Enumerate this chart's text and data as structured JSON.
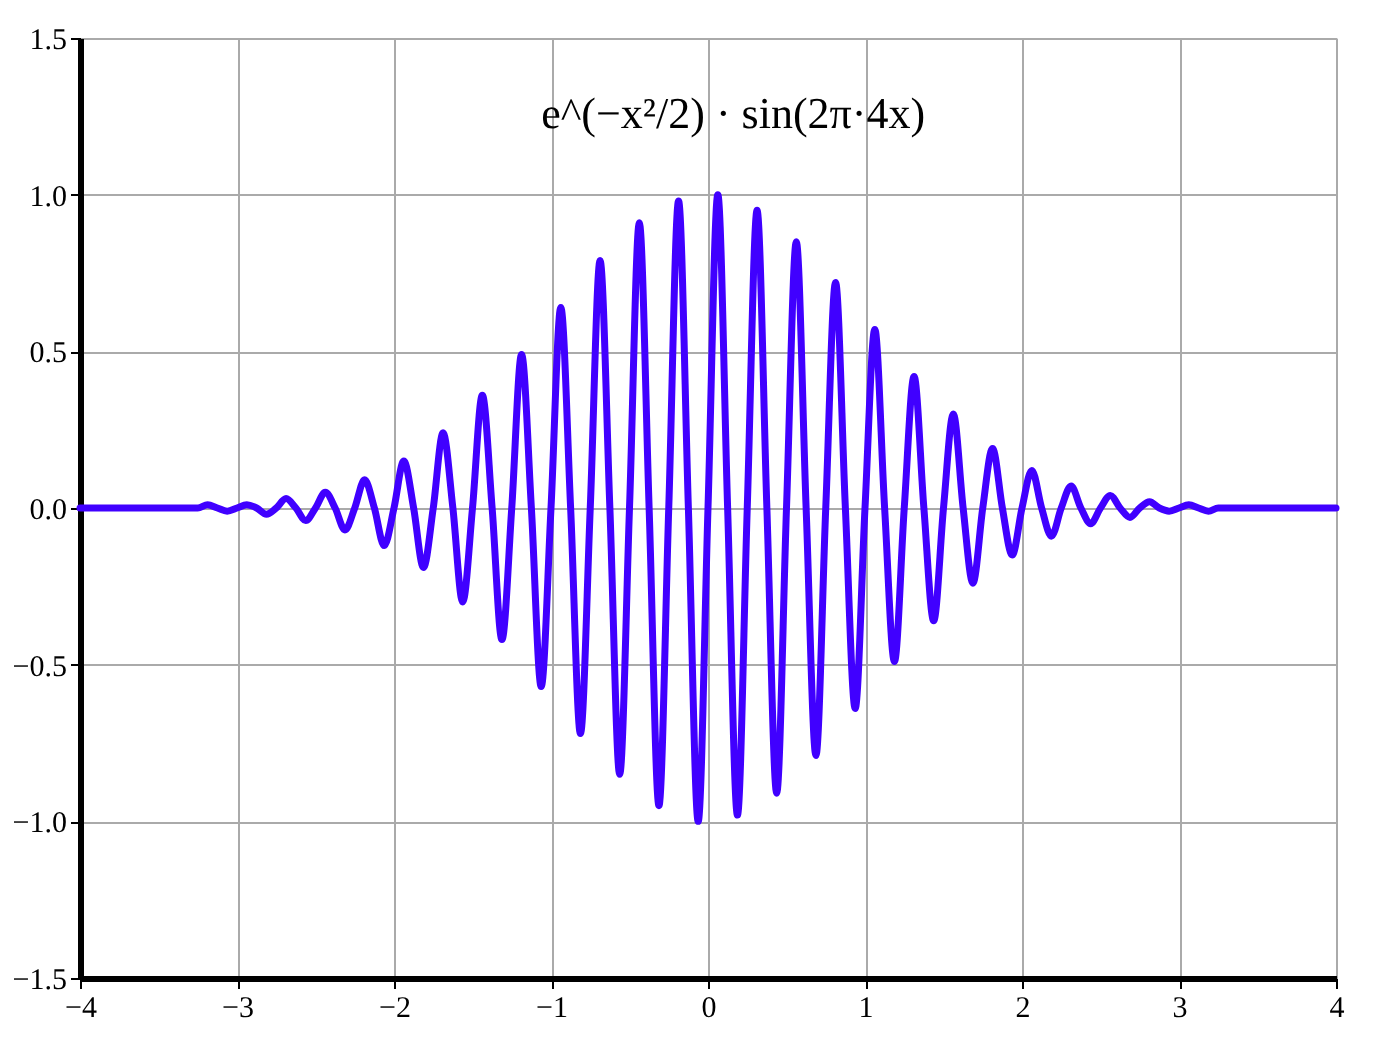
{
  "chart_data": {
    "type": "line",
    "title": "e^(−x²/2) · sin(2π·4x)",
    "x": [
      -4,
      -3.25,
      -3.1875,
      -3.125,
      -3.0625,
      -3,
      -2.9375,
      -2.875,
      -2.8125,
      -2.75,
      -2.6875,
      -2.625,
      -2.5625,
      -2.5,
      -2.4375,
      -2.375,
      -2.3125,
      -2.25,
      -2.1875,
      -2.125,
      -2.0625,
      -2,
      -1.9375,
      -1.875,
      -1.8125,
      -1.75,
      -1.6875,
      -1.625,
      -1.5625,
      -1.5,
      -1.4375,
      -1.375,
      -1.3125,
      -1.25,
      -1.1875,
      -1.125,
      -1.0625,
      -1,
      -0.9375,
      -0.875,
      -0.8125,
      -0.75,
      -0.6875,
      -0.625,
      -0.5625,
      -0.5,
      -0.4375,
      -0.375,
      -0.3125,
      -0.25,
      -0.1875,
      -0.125,
      -0.0625,
      0,
      0.0625,
      0.125,
      0.1875,
      0.25,
      0.3125,
      0.375,
      0.4375,
      0.5,
      0.5625,
      0.625,
      0.6875,
      0.75,
      0.8125,
      0.875,
      0.9375,
      1,
      1.0625,
      1.125,
      1.1875,
      1.25,
      1.3125,
      1.375,
      1.4375,
      1.5,
      1.5625,
      1.625,
      1.6875,
      1.75,
      1.8125,
      1.875,
      1.9375,
      2,
      2.0625,
      2.125,
      2.1875,
      2.25,
      2.3125,
      2.375,
      2.4375,
      2.5,
      2.5625,
      2.625,
      2.6875,
      2.75,
      2.8125,
      2.875,
      2.9375,
      3,
      3.0625,
      3.125,
      3.1875,
      3.25,
      4
    ],
    "series": [
      {
        "color": "#4000ff",
        "values": [
          0,
          0,
          0.01,
          0,
          -0.01,
          0,
          0.01,
          0,
          -0.02,
          0,
          0.03,
          0,
          -0.04,
          0,
          0.05,
          0,
          -0.07,
          0,
          0.09,
          0,
          -0.12,
          0,
          0.15,
          0,
          -0.19,
          0,
          0.24,
          0,
          -0.3,
          0,
          0.36,
          0,
          -0.42,
          0,
          0.49,
          0,
          -0.57,
          0,
          0.64,
          0,
          -0.72,
          0,
          0.79,
          0,
          -0.85,
          0,
          0.91,
          0,
          -0.95,
          0,
          0.98,
          0,
          -1.0,
          0,
          1.0,
          0,
          -0.98,
          0,
          0.95,
          0,
          -0.91,
          0,
          0.85,
          0,
          -0.79,
          0,
          0.72,
          0,
          -0.64,
          0,
          0.57,
          0,
          -0.49,
          0,
          0.42,
          0,
          -0.36,
          0,
          0.3,
          0,
          -0.24,
          0,
          0.19,
          0,
          -0.15,
          0,
          0.12,
          0,
          -0.09,
          0,
          0.07,
          0,
          -0.05,
          0,
          0.04,
          0,
          -0.03,
          0,
          0.02,
          0,
          -0.01,
          0,
          0.01,
          0,
          -0.01,
          0,
          0
        ]
      }
    ],
    "xlim": [
      -4,
      4
    ],
    "xticks": [
      {
        "value": -4,
        "label": "−4"
      },
      {
        "value": -3,
        "label": "−3"
      },
      {
        "value": -2,
        "label": "−2"
      },
      {
        "value": -1,
        "label": "−1"
      },
      0,
      1,
      2,
      3,
      4
    ],
    "ylim": [
      -1.5,
      1.5
    ],
    "yticks": [
      {
        "value": -1.5,
        "label": "−1.5"
      },
      {
        "value": -1,
        "label": "−1.0"
      },
      {
        "value": -0.5,
        "label": "−0.5"
      },
      {
        "value": 0,
        "label": "0.0"
      },
      {
        "value": 0.5,
        "label": "0.5"
      },
      {
        "value": 1,
        "label": "1.0"
      },
      {
        "value": 1.5,
        "label": "1.5"
      }
    ],
    "grid": true,
    "marker": "none",
    "line_style": "solid"
  }
}
